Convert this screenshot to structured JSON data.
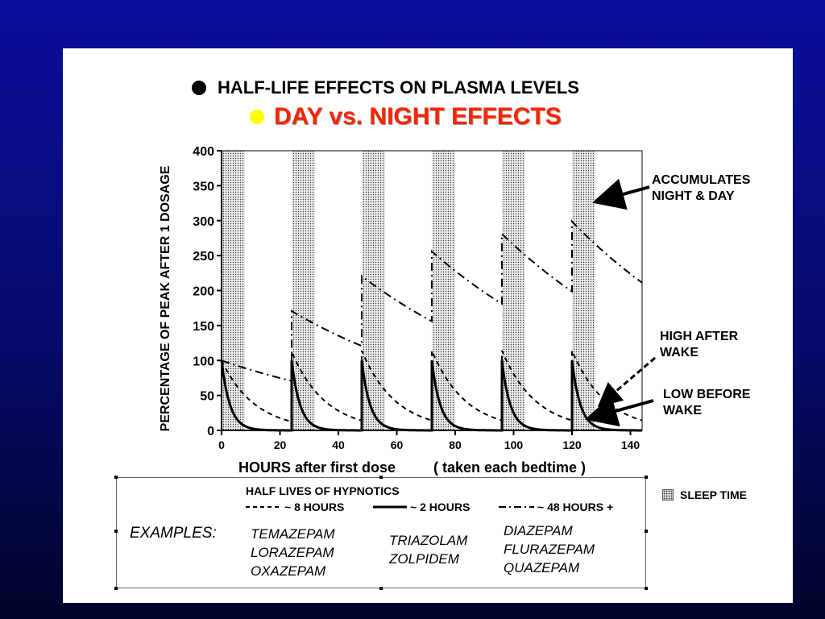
{
  "title_line1": "HALF-LIFE EFFECTS ON PLASMA LEVELS",
  "title_line2": "DAY  vs.   NIGHT  EFFECTS",
  "chart_data": {
    "type": "line",
    "xlabel": "HOURS  after first dose",
    "xlabel_note": "( taken each bedtime )",
    "ylabel": "PERCENTAGE  OF  PEAK  AFTER  1  DOSAGE",
    "xlim": [
      0,
      144
    ],
    "ylim": [
      0,
      400
    ],
    "xticks": [
      0,
      20,
      40,
      60,
      80,
      100,
      120,
      140
    ],
    "yticks": [
      0,
      50,
      100,
      150,
      200,
      250,
      300,
      350,
      400
    ],
    "sleep_periods": [
      [
        0,
        8
      ],
      [
        24,
        32
      ],
      [
        48,
        56
      ],
      [
        72,
        80
      ],
      [
        96,
        104
      ],
      [
        120,
        128
      ]
    ],
    "dose_times": [
      0,
      24,
      48,
      72,
      96,
      120
    ],
    "series": [
      {
        "name": "~ 8 HOURS",
        "style": "dashed",
        "half_life_hours": 8
      },
      {
        "name": "~ 2 HOURS",
        "style": "solid",
        "half_life_hours": 2
      },
      {
        "name": "~ 48 HOURS +",
        "style": "dashdot",
        "half_life_hours": 48
      }
    ],
    "annotations": [
      {
        "text": "ACCUMULATES NIGHT & DAY",
        "x": 128,
        "y": 330
      },
      {
        "text": "HIGH AFTER WAKE",
        "x": 130,
        "y": 40
      },
      {
        "text": "LOW BEFORE WAKE",
        "x": 126,
        "y": 20
      }
    ]
  },
  "legend": {
    "title": "HALF LIVES OF HYPNOTICS",
    "items": [
      "~ 8 HOURS",
      "~ 2 HOURS",
      "~ 48 HOURS +"
    ],
    "sleep_label": "SLEEP TIME"
  },
  "examples": {
    "label": "EXAMPLES:",
    "col_8h": [
      "TEMAZEPAM",
      "LORAZEPAM",
      "OXAZEPAM"
    ],
    "col_2h": [
      "TRIAZOLAM",
      "ZOLPIDEM"
    ],
    "col_48h": [
      "DIAZEPAM",
      "FLURAZEPAM",
      "QUAZEPAM"
    ]
  },
  "annot_text": {
    "accum": [
      "ACCUMULATES",
      "NIGHT & DAY"
    ],
    "high": [
      "HIGH AFTER",
      "WAKE"
    ],
    "low": [
      "LOW BEFORE",
      "WAKE"
    ]
  }
}
